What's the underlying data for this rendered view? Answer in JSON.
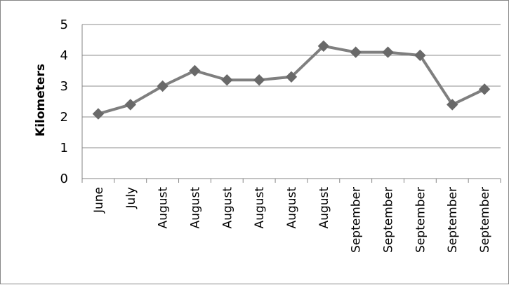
{
  "chart_data": {
    "type": "line",
    "categories": [
      "June",
      "July",
      "August",
      "August",
      "August",
      "August",
      "August",
      "August",
      "September",
      "September",
      "September",
      "September",
      "September"
    ],
    "series": [
      {
        "values": [
          2.1,
          2.4,
          3.0,
          3.5,
          3.2,
          3.2,
          3.3,
          4.3,
          4.1,
          4.1,
          4.0,
          2.4,
          2.9
        ]
      }
    ],
    "title": "",
    "xlabel": "",
    "ylabel": "Kilometers",
    "ylim": [
      0,
      5
    ],
    "yticks": [
      "0",
      "1",
      "2",
      "3",
      "4",
      "5"
    ],
    "grid": true,
    "legend": "none",
    "colors": {
      "line": "#7f7f7f",
      "marker": "#696969",
      "grid": "#8c8c8c",
      "axis": "#868686"
    },
    "marker": "diamond"
  }
}
